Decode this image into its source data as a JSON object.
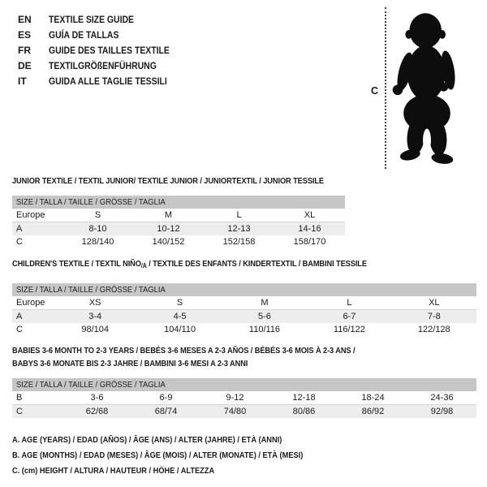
{
  "page": {
    "background": "#ffffff",
    "text_color": "#1a1a1a",
    "band_color": "#c6c6c6",
    "shaded_row_color": "#ededed",
    "silhouette_color": "#0d0d0d"
  },
  "languages": [
    {
      "code": "EN",
      "title": "TEXTILE SIZE GUIDE"
    },
    {
      "code": "ES",
      "title": "GUÍA DE TALLAS"
    },
    {
      "code": "FR",
      "title": "GUIDE DES TAILLES TEXTILE"
    },
    {
      "code": "DE",
      "title": "TEXTILGRÖßENFÜHRUNG"
    },
    {
      "code": "IT",
      "title": "GUIDA ALLE TAGLIE TESSILI"
    }
  ],
  "figure": {
    "measure_label": "C"
  },
  "sections": [
    {
      "title": "JUNIOR TEXTILE / TEXTIL JUNIOR/ TEXTILE JUNIOR / JUNIORTEXTIL / JUNIOR TESSILE",
      "size_header": "SIZE / TALLA / TAILLE / GRÖSSE / TAGLIA",
      "rows": [
        {
          "label": "Europe",
          "values": [
            "S",
            "M",
            "L",
            "XL"
          ]
        },
        {
          "label": "A",
          "values": [
            "8-10",
            "10-12",
            "12-13",
            "14-16"
          ]
        },
        {
          "label": "C",
          "values": [
            "128/140",
            "140/152",
            "152/158",
            "158/170"
          ]
        }
      ]
    },
    {
      "title_pre": "CHILDREN'S TEXTILE / TEXTIL NIÑO",
      "title_sub": "/A",
      "title_post": " / TEXTILE DES ENFANTS / KINDERTEXTIL / BAMBINI TESSILE",
      "size_header": "SIZE / TALLA / TAILLE / GRÖSSE / TAGLIA",
      "rows": [
        {
          "label": "Europe",
          "values": [
            "XS",
            "S",
            "M",
            "L",
            "XL"
          ]
        },
        {
          "label": "A",
          "values": [
            "3-4",
            "4-5",
            "5-6",
            "6-7",
            "7-8"
          ]
        },
        {
          "label": "C",
          "values": [
            "98/104",
            "104/110",
            "110/116",
            "116/122",
            "122/128"
          ]
        }
      ]
    },
    {
      "title_line1": "BABIES 3-6 MONTH TO 2-3 YEARS / BEBÉS 3-6 MESES A 2-3 AÑOS / BÉBÉS 3-6 MOIS À 2-3 ANS /",
      "title_line2": "BABYS 3-6 MONATE BIS 2-3 JAHRE / BAMBINI 3-6 MESI A 2-3 ANNI",
      "size_header": "SIZE / TALLA / TAILLE / GRÖSSE / TAGLIA",
      "rows": [
        {
          "label": "B",
          "values": [
            "3-6",
            "6-9",
            "9-12",
            "12-18",
            "18-24",
            "24-36"
          ]
        },
        {
          "label": "C",
          "values": [
            "62/68",
            "68/74",
            "74/80",
            "80/86",
            "86/92",
            "92/98"
          ]
        }
      ]
    }
  ],
  "notes": [
    "A. AGE (YEARS) / EDAD (AÑOS) / ÂGE (ANS) / ALTER (JAHRE) / ETÀ (ANNI)",
    "B. AGE (MONTHS) / EDAD (MESES) / ÂGE (MOIS) / ALTER (MONATE) / ETÀ (MESI)",
    "C. (cm) HEIGHT / ALTURA / HAUTEUR / HÖHE / ALTEZZA"
  ]
}
